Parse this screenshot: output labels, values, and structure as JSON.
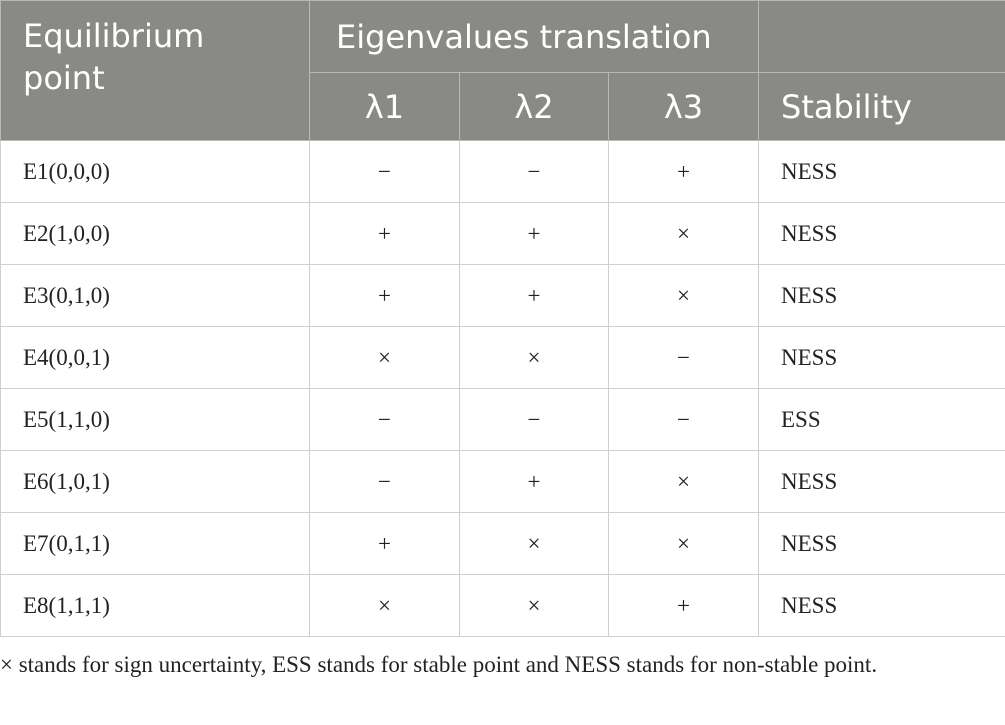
{
  "table": {
    "header": {
      "first": "Equilibrium point",
      "group": "Eigenvalues translation",
      "columns": [
        "λ1",
        "λ2",
        "λ3"
      ],
      "last": "Stability"
    },
    "rows": [
      [
        "E1(0,0,0)",
        "−",
        "−",
        "+",
        "NESS"
      ],
      [
        "E2(1,0,0)",
        "+",
        "+",
        "×",
        "NESS"
      ],
      [
        "E3(0,1,0)",
        "+",
        "+",
        "×",
        "NESS"
      ],
      [
        "E4(0,0,1)",
        "×",
        "×",
        "−",
        "NESS"
      ],
      [
        "E5(1,1,0)",
        "−",
        "−",
        "−",
        "ESS"
      ],
      [
        "E6(1,0,1)",
        "−",
        "+",
        "×",
        "NESS"
      ],
      [
        "E7(0,1,1)",
        "+",
        "×",
        "×",
        "NESS"
      ],
      [
        "E8(1,1,1)",
        "×",
        "×",
        "+",
        "NESS"
      ]
    ]
  },
  "footnote": "× stands for sign uncertainty, ESS stands for stable point and NESS stands for non-stable point."
}
